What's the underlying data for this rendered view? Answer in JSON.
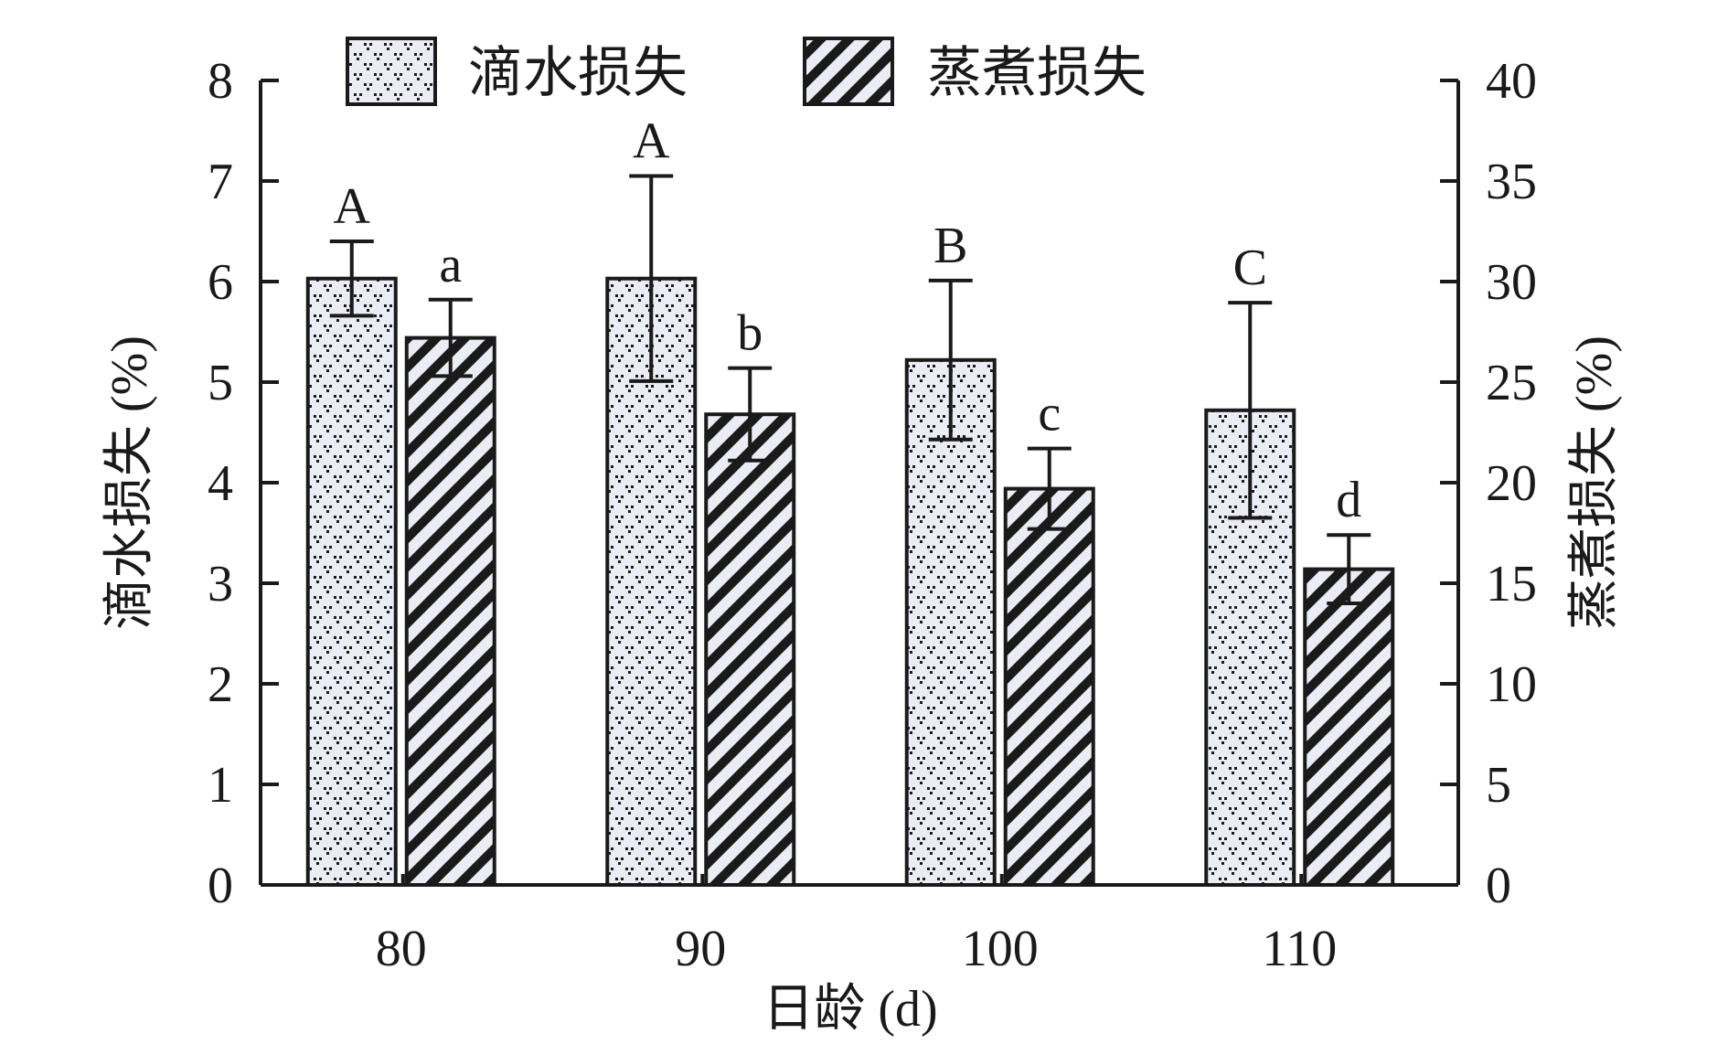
{
  "chart_data": {
    "type": "bar",
    "categories": [
      "80",
      "90",
      "100",
      "110"
    ],
    "xlabel": "日龄 (d)",
    "ylabel_left": "滴水损失 (%)",
    "ylabel_right": "蒸煮损失 (%)",
    "ylim_left": [
      0,
      8
    ],
    "ylim_right": [
      0,
      40
    ],
    "yticks_left": [
      "0",
      "1",
      "2",
      "3",
      "4",
      "5",
      "6",
      "7",
      "8"
    ],
    "yticks_right": [
      "0",
      "5",
      "10",
      "15",
      "20",
      "25",
      "30",
      "35",
      "40"
    ],
    "legend_position": "top-center",
    "grid": false,
    "series": [
      {
        "name": "滴水损失",
        "axis": "left",
        "pattern": "dots",
        "values": [
          6.03,
          6.03,
          5.22,
          4.72
        ],
        "errors": [
          0.37,
          1.02,
          0.79,
          1.07
        ],
        "letters": [
          "A",
          "A",
          "B",
          "C"
        ]
      },
      {
        "name": "蒸煮损失",
        "axis": "right",
        "pattern": "diagonal-hatch",
        "values": [
          27.2,
          23.4,
          19.7,
          15.7
        ],
        "errors": [
          1.9,
          2.3,
          2.0,
          1.7
        ],
        "letters": [
          "a",
          "b",
          "c",
          "d"
        ]
      }
    ],
    "colors": {
      "axis": "#1a1a1a",
      "bar_fill": "#ececf5",
      "bar_stroke": "#1a1a1a"
    }
  }
}
